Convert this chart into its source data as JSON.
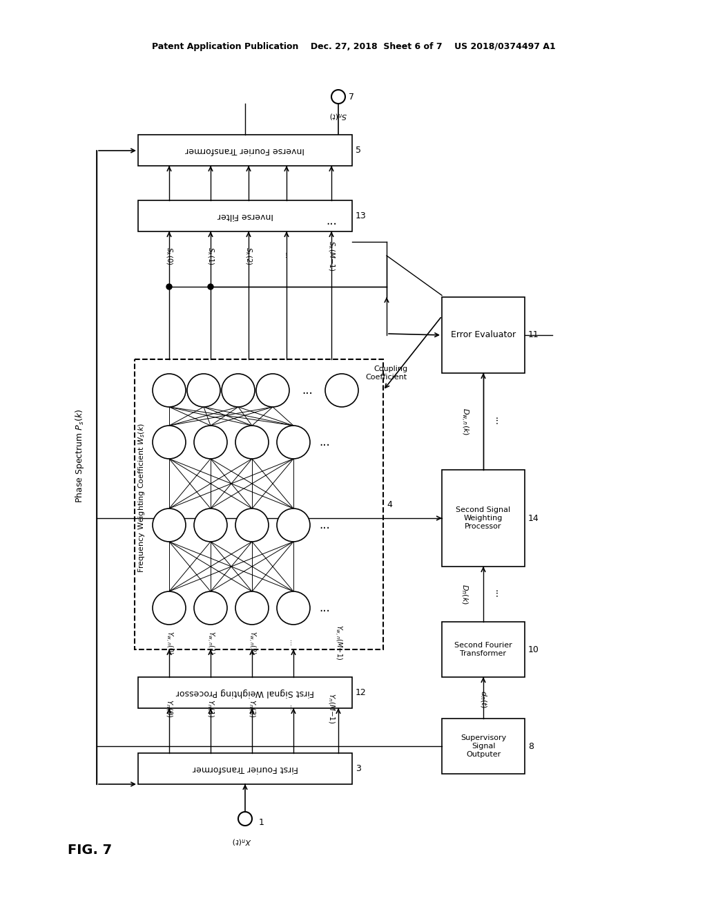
{
  "title": "Patent Application Publication    Dec. 27, 2018  Sheet 6 of 7    US 2018/0374497 A1",
  "fig_label": "FIG. 7",
  "background_color": "#ffffff",
  "box_color": "#000000",
  "text_color": "#000000",
  "line_color": "#000000",
  "node_color": "#ffffff",
  "node_edge_color": "#000000",
  "blocks": {
    "first_fourier": {
      "label": "First Fourier Transformer",
      "id": "3"
    },
    "first_weighting": {
      "label": "First Signal Weighting Processor",
      "id": "12"
    },
    "neural_network": {
      "label": "4",
      "dashed": true
    },
    "inverse_filter": {
      "label": "Inverse Filter",
      "id": "13"
    },
    "inverse_fourier": {
      "label": "Inverse Fourier Transformer",
      "id": "5"
    },
    "supervisory": {
      "label": "Supervisory\nSignal\nOutputer",
      "id": "8"
    },
    "second_fourier": {
      "label": "Second Fourier\nTransformer",
      "id": "10"
    },
    "second_weighting": {
      "label": "Second Signal\nWeighting\nProcessor",
      "id": "14"
    },
    "error_evaluator": {
      "label": "Error Evaluator",
      "id": "11"
    }
  },
  "signals": {
    "input": "X_n(t)",
    "output": "S_n(t)",
    "phase_spectrum": "Phase Spectrum P_s(k)",
    "freq_weight_coeff": "Frequency Weighting Coefficient W_s(k)",
    "coupling_coeff": "Coupling Coefficient",
    "d_t": "d_n(t)",
    "D_k": "D_n(k)",
    "D_wk": "D_{w,n}(k)"
  }
}
